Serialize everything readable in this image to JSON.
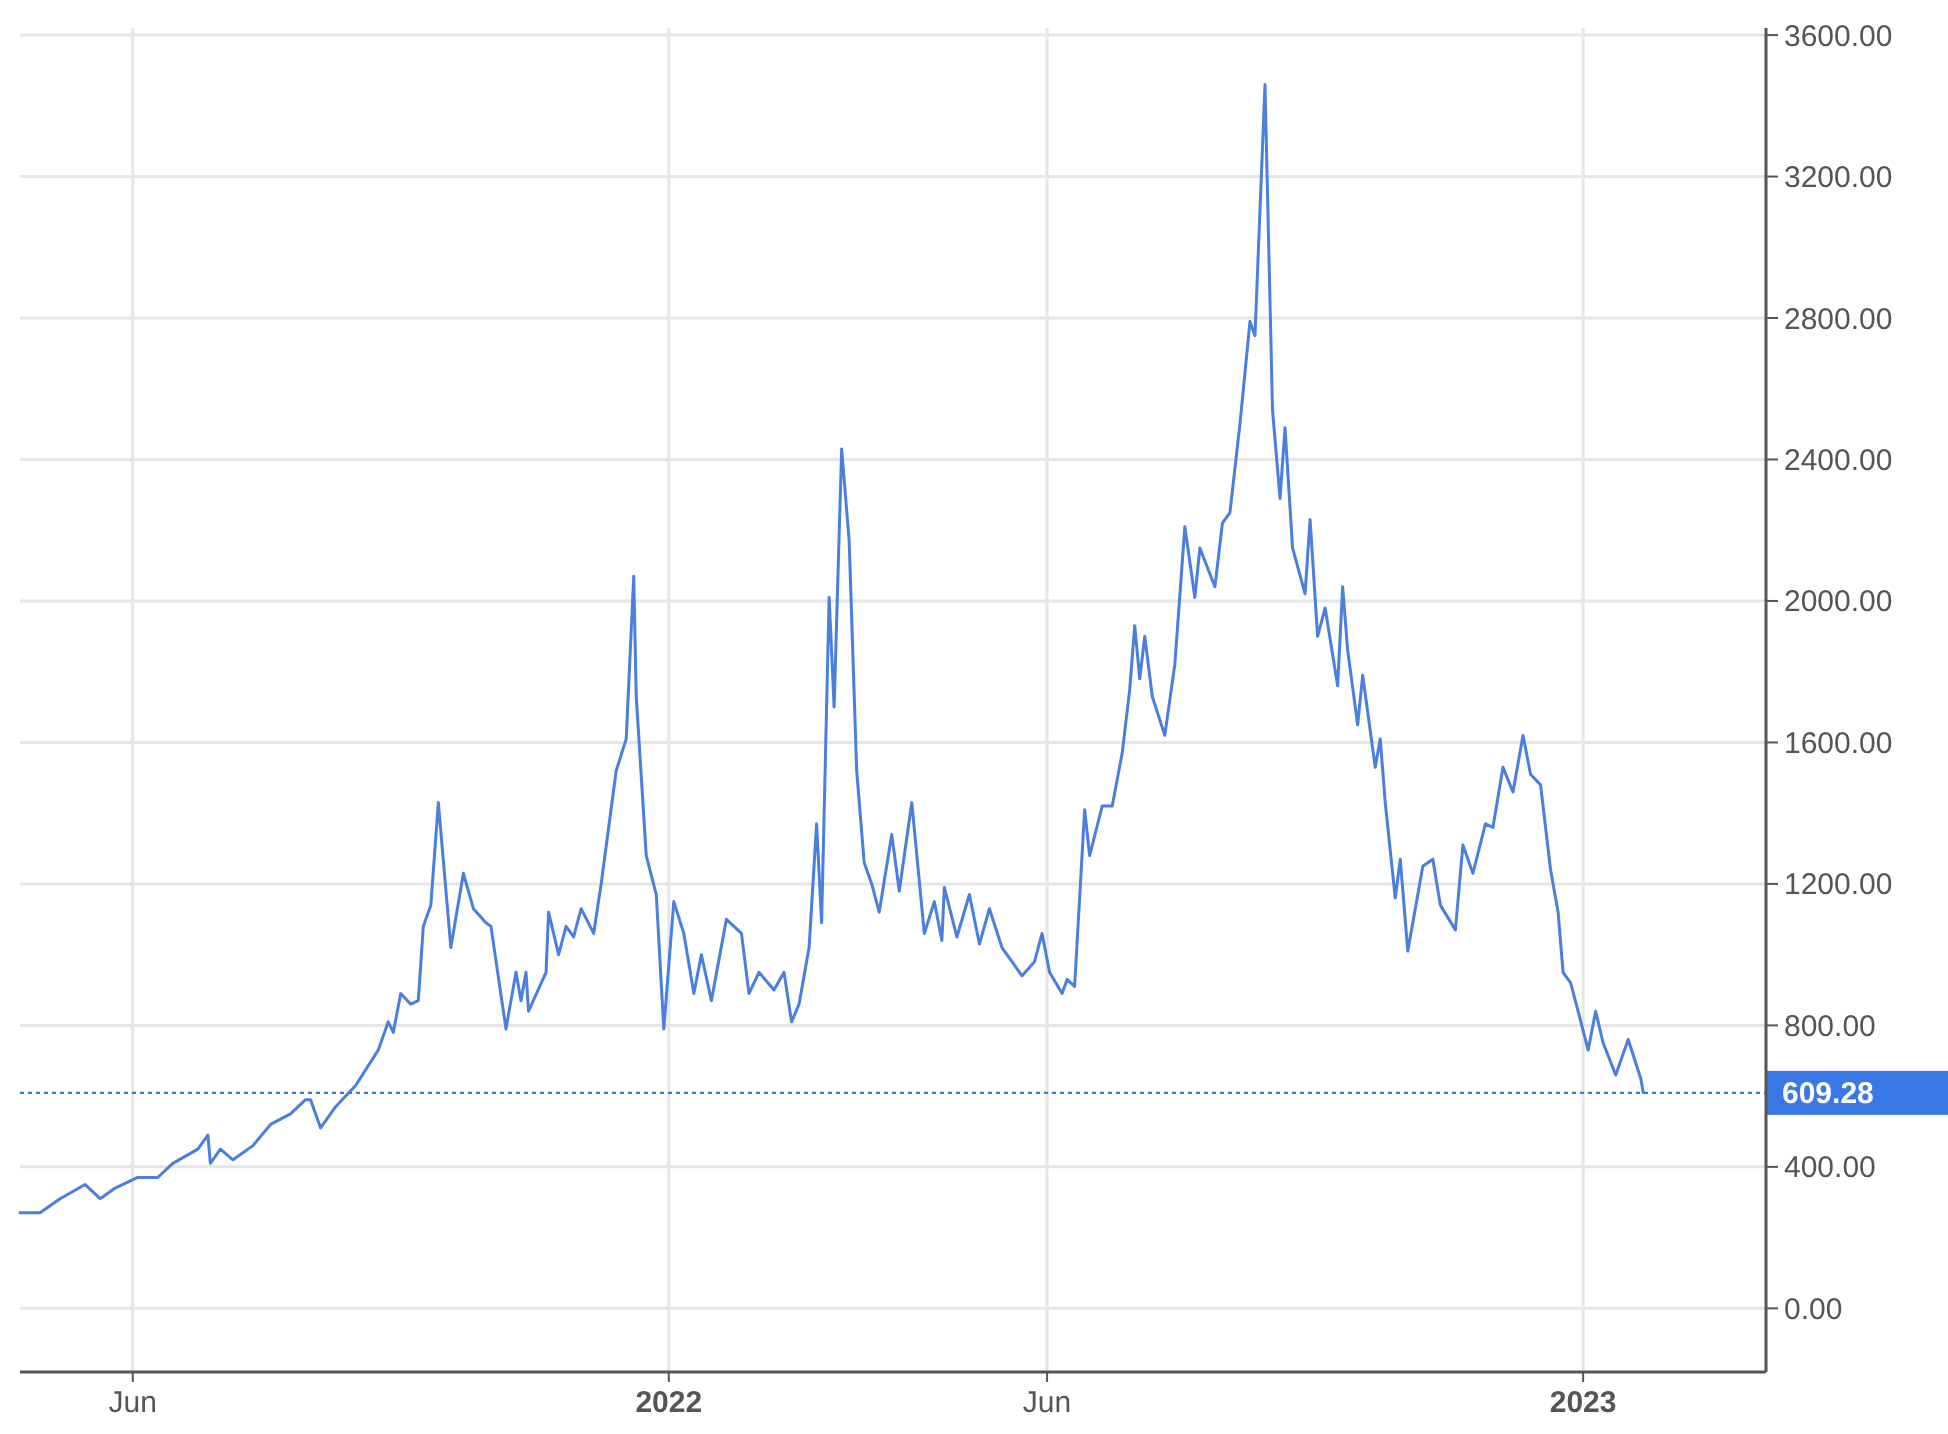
{
  "chart_data": {
    "type": "line",
    "x": [
      "2021-04-17",
      "2021-04-25",
      "2021-05-03",
      "2021-05-13",
      "2021-05-19",
      "2021-05-25",
      "2021-06-03",
      "2021-06-11",
      "2021-06-17",
      "2021-06-27",
      "2021-07-01",
      "2021-07-02",
      "2021-07-06",
      "2021-07-11",
      "2021-07-19",
      "2021-07-26",
      "2021-08-03",
      "2021-08-09",
      "2021-08-11",
      "2021-08-15",
      "2021-08-21",
      "2021-08-29",
      "2021-09-07",
      "2021-09-11",
      "2021-09-13",
      "2021-09-16",
      "2021-09-20",
      "2021-09-23",
      "2021-09-25",
      "2021-09-28",
      "2021-10-01",
      "2021-10-06",
      "2021-10-11",
      "2021-10-15",
      "2021-10-20",
      "2021-10-22",
      "2021-10-28",
      "2021-11-01",
      "2021-11-03",
      "2021-11-05",
      "2021-11-06",
      "2021-11-13",
      "2021-11-14",
      "2021-11-18",
      "2021-11-21",
      "2021-11-24",
      "2021-11-27",
      "2021-12-02",
      "2021-12-05",
      "2021-12-11",
      "2021-12-15",
      "2021-12-18",
      "2021-12-19",
      "2021-12-23",
      "2021-12-27",
      "2021-12-30",
      "2022-01-03",
      "2022-01-07",
      "2022-01-11",
      "2022-01-14",
      "2022-01-18",
      "2022-01-24",
      "2022-01-30",
      "2022-02-02",
      "2022-02-06",
      "2022-02-12",
      "2022-02-16",
      "2022-02-19",
      "2022-02-22",
      "2022-02-26",
      "2022-03-01",
      "2022-03-03",
      "2022-03-06",
      "2022-03-08",
      "2022-03-11",
      "2022-03-14",
      "2022-03-17",
      "2022-03-20",
      "2022-03-23",
      "2022-03-26",
      "2022-03-31",
      "2022-04-03",
      "2022-04-08",
      "2022-04-13",
      "2022-04-17",
      "2022-04-20",
      "2022-04-21",
      "2022-04-26",
      "2022-05-01",
      "2022-05-05",
      "2022-05-09",
      "2022-05-14",
      "2022-05-22",
      "2022-05-27",
      "2022-05-30",
      "2022-06-02",
      "2022-06-07",
      "2022-06-09",
      "2022-06-12",
      "2022-06-16",
      "2022-06-18",
      "2022-06-23",
      "2022-06-27",
      "2022-07-01",
      "2022-07-04",
      "2022-07-06",
      "2022-07-08",
      "2022-07-10",
      "2022-07-13",
      "2022-07-18",
      "2022-07-22",
      "2022-07-26",
      "2022-07-30",
      "2022-08-01",
      "2022-08-07",
      "2022-08-10",
      "2022-08-13",
      "2022-08-17",
      "2022-08-21",
      "2022-08-23",
      "2022-08-27",
      "2022-08-30",
      "2022-09-02",
      "2022-09-04",
      "2022-09-07",
      "2022-09-12",
      "2022-09-14",
      "2022-09-17",
      "2022-09-20",
      "2022-09-25",
      "2022-09-27",
      "2022-09-29",
      "2022-10-03",
      "2022-10-05",
      "2022-10-10",
      "2022-10-12",
      "2022-10-14",
      "2022-10-18",
      "2022-10-20",
      "2022-10-23",
      "2022-10-29",
      "2022-11-02",
      "2022-11-05",
      "2022-11-11",
      "2022-11-14",
      "2022-11-18",
      "2022-11-23",
      "2022-11-26",
      "2022-11-30",
      "2022-12-04",
      "2022-12-08",
      "2022-12-11",
      "2022-12-15",
      "2022-12-19",
      "2022-12-22",
      "2022-12-24",
      "2022-12-27",
      "2022-12-30",
      "2023-01-03",
      "2023-01-06",
      "2023-01-09",
      "2023-01-14",
      "2023-01-19",
      "2023-01-24",
      "2023-01-25"
    ],
    "series": [
      {
        "color": "#4a7fdc",
        "values": [
          270,
          270,
          310,
          350,
          310,
          340,
          370,
          370,
          410,
          450,
          490,
          410,
          450,
          420,
          460,
          520,
          550,
          590,
          590,
          510,
          570,
          630,
          730,
          810,
          780,
          890,
          860,
          870,
          1080,
          1140,
          1430,
          1020,
          1230,
          1130,
          1090,
          1080,
          790,
          950,
          870,
          950,
          840,
          950,
          1120,
          1000,
          1080,
          1050,
          1130,
          1060,
          1200,
          1520,
          1610,
          2070,
          1730,
          1280,
          1170,
          790,
          1150,
          1060,
          890,
          1000,
          870,
          1100,
          1060,
          890,
          950,
          900,
          950,
          810,
          860,
          1020,
          1370,
          1090,
          2010,
          1700,
          2430,
          2170,
          1520,
          1260,
          1200,
          1120,
          1340,
          1180,
          1430,
          1060,
          1150,
          1040,
          1190,
          1050,
          1170,
          1030,
          1130,
          1020,
          940,
          980,
          1060,
          950,
          890,
          930,
          910,
          1410,
          1280,
          1420,
          1420,
          1570,
          1750,
          1930,
          1780,
          1900,
          1730,
          1620,
          1820,
          2210,
          2010,
          2150,
          2040,
          2220,
          2250,
          2500,
          2790,
          2750,
          3460,
          2540,
          2290,
          2490,
          2150,
          2020,
          2230,
          1900,
          1980,
          1760,
          2040,
          1860,
          1650,
          1790,
          1530,
          1610,
          1430,
          1160,
          1270,
          1010,
          1250,
          1270,
          1140,
          1070,
          1310,
          1230,
          1370,
          1360,
          1530,
          1460,
          1620,
          1510,
          1480,
          1240,
          1120,
          950,
          920,
          840,
          730,
          840,
          750,
          660,
          760,
          650,
          610
        ]
      }
    ],
    "xlim": [
      "2021-04-17",
      "2023-03-15"
    ],
    "xticks": [
      {
        "value": "2021-06-01",
        "label": "Jun"
      },
      {
        "value": "2022-01-01",
        "label": "2022"
      },
      {
        "value": "2022-06-01",
        "label": "Jun"
      },
      {
        "value": "2023-01-01",
        "label": "2023"
      }
    ],
    "ylim": [
      -180,
      3620
    ],
    "yticks": [
      {
        "value": 0,
        "label": "0.00"
      },
      {
        "value": 400,
        "label": "400.00"
      },
      {
        "value": 800,
        "label": "800.00"
      },
      {
        "value": 1200,
        "label": "1200.00"
      },
      {
        "value": 1600,
        "label": "1600.00"
      },
      {
        "value": 2000,
        "label": "2000.00"
      },
      {
        "value": 2400,
        "label": "2400.00"
      },
      {
        "value": 2800,
        "label": "2800.00"
      },
      {
        "value": 3200,
        "label": "3200.00"
      },
      {
        "value": 3600,
        "label": "3600.00"
      }
    ],
    "grid": true,
    "marker": "none",
    "line_style": "solid",
    "ref_lines": [
      {
        "axis": "y",
        "value": 609.28,
        "label": "609.28",
        "color": "#3b78e7",
        "line_style": "dotted"
      }
    ]
  }
}
